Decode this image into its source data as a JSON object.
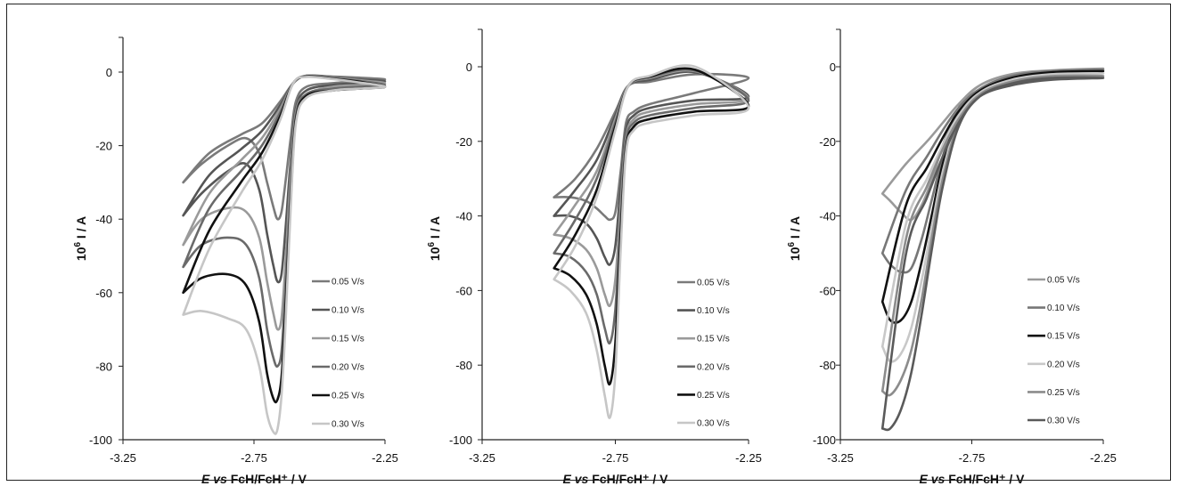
{
  "chart_data": [
    {
      "type": "line",
      "title": "",
      "xlabel": {
        "italic": "E vs",
        "rest": "FcH/FcH⁺ / V"
      },
      "ylabel": {
        "prefix": "10",
        "sup": "6",
        "rest": " I / A"
      },
      "xlim": [
        -3.25,
        -2.25
      ],
      "ylim": [
        -100,
        10
      ],
      "xticks": [
        "-3.25",
        "-2.75",
        "-2.25"
      ],
      "yticks": [
        "0",
        "-20",
        "-40",
        "-60",
        "-80",
        "-100"
      ],
      "grid": false,
      "legend": "bottom-right",
      "series": [
        {
          "name": "0.05 V/s",
          "color": "#7a7a7a",
          "x": [
            -3.02,
            -2.95,
            -2.85,
            -2.78,
            -2.73,
            -2.7,
            -2.675,
            -2.66,
            -2.645,
            -2.63,
            -2.61,
            -2.59,
            -2.55,
            -2.45,
            -2.35,
            -2.25,
            -2.35,
            -2.45,
            -2.55,
            -2.6,
            -2.65,
            -2.72,
            -2.8,
            -2.92,
            -3.02
          ],
          "y": [
            -30,
            -25,
            -20,
            -18,
            -22,
            -30,
            -37,
            -40,
            -38,
            -30,
            -18,
            -8,
            -4,
            -3,
            -2.5,
            -2,
            -1.5,
            -1.2,
            -1,
            -3,
            -8,
            -14,
            -17,
            -22,
            -30
          ]
        },
        {
          "name": "0.10 V/s",
          "color": "#555555",
          "x": [
            -3.02,
            -2.95,
            -2.85,
            -2.78,
            -2.73,
            -2.7,
            -2.675,
            -2.66,
            -2.645,
            -2.63,
            -2.61,
            -2.59,
            -2.55,
            -2.45,
            -2.35,
            -2.25,
            -2.35,
            -2.45,
            -2.55,
            -2.6,
            -2.65,
            -2.72,
            -2.8,
            -2.92,
            -3.02
          ],
          "y": [
            -39,
            -33,
            -27,
            -25,
            -32,
            -44,
            -53,
            -57,
            -55,
            -43,
            -24,
            -10,
            -5,
            -3.5,
            -3,
            -2.5,
            -2,
            -1.5,
            -1,
            -3,
            -9,
            -16,
            -21,
            -28,
            -39
          ]
        },
        {
          "name": "0.15 V/s",
          "color": "#9a9a9a",
          "x": [
            -3.02,
            -2.95,
            -2.85,
            -2.78,
            -2.73,
            -2.7,
            -2.675,
            -2.66,
            -2.645,
            -2.63,
            -2.61,
            -2.59,
            -2.55,
            -2.45,
            -2.35,
            -2.25,
            -2.35,
            -2.45,
            -2.55,
            -2.6,
            -2.65,
            -2.72,
            -2.8,
            -2.92,
            -3.02
          ],
          "y": [
            -47,
            -40,
            -37,
            -38,
            -45,
            -57,
            -66,
            -70,
            -67,
            -52,
            -28,
            -11,
            -6,
            -4,
            -3.5,
            -3,
            -2.2,
            -1.6,
            -1,
            -3,
            -10,
            -18,
            -24,
            -33,
            -47
          ]
        },
        {
          "name": "0.20 V/s",
          "color": "#6a6a6a",
          "x": [
            -3.02,
            -2.95,
            -2.85,
            -2.78,
            -2.73,
            -2.7,
            -2.675,
            -2.66,
            -2.645,
            -2.63,
            -2.61,
            -2.59,
            -2.55,
            -2.45,
            -2.35,
            -2.25,
            -2.35,
            -2.45,
            -2.55,
            -2.6,
            -2.65,
            -2.72,
            -2.8,
            -2.92,
            -3.02
          ],
          "y": [
            -53,
            -47,
            -45,
            -47,
            -56,
            -70,
            -78,
            -80,
            -76,
            -59,
            -32,
            -12,
            -6,
            -4.5,
            -4,
            -3.5,
            -2.4,
            -1.7,
            -1.1,
            -3,
            -11,
            -20,
            -27,
            -37,
            -53
          ]
        },
        {
          "name": "0.25 V/s",
          "color": "#111111",
          "x": [
            -3.02,
            -2.95,
            -2.85,
            -2.78,
            -2.73,
            -2.7,
            -2.675,
            -2.66,
            -2.645,
            -2.63,
            -2.61,
            -2.59,
            -2.55,
            -2.45,
            -2.35,
            -2.25,
            -2.35,
            -2.45,
            -2.55,
            -2.6,
            -2.65,
            -2.72,
            -2.8,
            -2.92,
            -3.02
          ],
          "y": [
            -60,
            -56,
            -55,
            -58,
            -68,
            -82,
            -89,
            -89,
            -83,
            -65,
            -35,
            -13,
            -6.5,
            -5,
            -4.5,
            -4,
            -2.6,
            -1.8,
            -1.2,
            -3,
            -12,
            -22,
            -30,
            -43,
            -60
          ]
        },
        {
          "name": "0.30 V/s",
          "color": "#c6c6c6",
          "x": [
            -3.02,
            -2.95,
            -2.85,
            -2.78,
            -2.73,
            -2.7,
            -2.675,
            -2.66,
            -2.645,
            -2.63,
            -2.61,
            -2.59,
            -2.55,
            -2.45,
            -2.35,
            -2.25,
            -2.35,
            -2.45,
            -2.55,
            -2.6,
            -2.65,
            -2.72,
            -2.8,
            -2.92,
            -3.02
          ],
          "y": [
            -66,
            -65,
            -67,
            -70,
            -80,
            -93,
            -98,
            -97,
            -88,
            -69,
            -37,
            -14,
            -7,
            -5,
            -4.5,
            -4,
            -2.8,
            -1.9,
            -1.3,
            -3,
            -13,
            -24,
            -33,
            -48,
            -66
          ]
        }
      ]
    },
    {
      "type": "line",
      "title": "",
      "xlabel": {
        "italic": "E vs",
        "rest": "FcH/FcH⁺ / V"
      },
      "ylabel": {
        "prefix": "10",
        "sup": "6",
        "rest": " I / A"
      },
      "xlim": [
        -3.25,
        -2.25
      ],
      "ylim": [
        -100,
        10
      ],
      "xticks": [
        "-3.25",
        "-2.75",
        "-2.25"
      ],
      "yticks": [
        "0",
        "-20",
        "-40",
        "-60",
        "-80",
        "-100"
      ],
      "grid": false,
      "legend": "bottom-right",
      "series": [
        {
          "name": "0.05 V/s",
          "color": "#7a7a7a",
          "x": [
            -2.98,
            -2.92,
            -2.86,
            -2.82,
            -2.79,
            -2.77,
            -2.75,
            -2.73,
            -2.71,
            -2.68,
            -2.62,
            -2.45,
            -2.25,
            -2.45,
            -2.62,
            -2.7,
            -2.75,
            -2.82,
            -2.9,
            -2.98
          ],
          "y": [
            -35,
            -35,
            -36,
            -38,
            -40,
            -41,
            -39,
            -28,
            -15,
            -12,
            -10,
            -7,
            -3,
            -2,
            -4,
            -5,
            -12,
            -22,
            -30,
            -35
          ]
        },
        {
          "name": "0.10 V/s",
          "color": "#555555",
          "x": [
            -2.98,
            -2.92,
            -2.86,
            -2.82,
            -2.79,
            -2.77,
            -2.75,
            -2.73,
            -2.71,
            -2.68,
            -2.62,
            -2.45,
            -2.25,
            -2.45,
            -2.62,
            -2.7,
            -2.75,
            -2.82,
            -2.9,
            -2.98
          ],
          "y": [
            -40,
            -40,
            -42,
            -46,
            -51,
            -53,
            -48,
            -32,
            -17,
            -13,
            -11,
            -9,
            -8,
            -1.5,
            -3.5,
            -5,
            -13,
            -25,
            -33,
            -40
          ]
        },
        {
          "name": "0.15 V/s",
          "color": "#9a9a9a",
          "x": [
            -2.98,
            -2.92,
            -2.86,
            -2.82,
            -2.79,
            -2.77,
            -2.75,
            -2.73,
            -2.71,
            -2.68,
            -2.62,
            -2.45,
            -2.25,
            -2.45,
            -2.62,
            -2.7,
            -2.75,
            -2.82,
            -2.9,
            -2.98
          ],
          "y": [
            -45,
            -46,
            -49,
            -54,
            -61,
            -64,
            -57,
            -37,
            -19,
            -14,
            -12,
            -10,
            -8.5,
            -1.2,
            -3,
            -5,
            -14,
            -28,
            -37,
            -45
          ]
        },
        {
          "name": "0.20 V/s",
          "color": "#6a6a6a",
          "x": [
            -2.98,
            -2.92,
            -2.86,
            -2.82,
            -2.79,
            -2.77,
            -2.75,
            -2.73,
            -2.71,
            -2.68,
            -2.62,
            -2.45,
            -2.25,
            -2.45,
            -2.62,
            -2.7,
            -2.75,
            -2.82,
            -2.9,
            -2.98
          ],
          "y": [
            -50,
            -51,
            -55,
            -61,
            -70,
            -74,
            -65,
            -41,
            -20,
            -15,
            -13,
            -11,
            -9,
            -1,
            -2.8,
            -5,
            -15,
            -30,
            -41,
            -50
          ]
        },
        {
          "name": "0.25 V/s",
          "color": "#111111",
          "x": [
            -2.98,
            -2.92,
            -2.86,
            -2.82,
            -2.79,
            -2.77,
            -2.75,
            -2.73,
            -2.71,
            -2.68,
            -2.62,
            -2.45,
            -2.25,
            -2.45,
            -2.62,
            -2.7,
            -2.75,
            -2.82,
            -2.9,
            -2.98
          ],
          "y": [
            -54,
            -56,
            -61,
            -69,
            -80,
            -85,
            -74,
            -45,
            -22,
            -16,
            -14,
            -12,
            -10.5,
            -0.8,
            -2.6,
            -5,
            -16,
            -33,
            -45,
            -54
          ]
        },
        {
          "name": "0.30 V/s",
          "color": "#c6c6c6",
          "x": [
            -2.98,
            -2.92,
            -2.86,
            -2.82,
            -2.79,
            -2.77,
            -2.75,
            -2.73,
            -2.71,
            -2.68,
            -2.62,
            -2.45,
            -2.25,
            -2.45,
            -2.62,
            -2.7,
            -2.75,
            -2.82,
            -2.9,
            -2.98
          ],
          "y": [
            -57,
            -60,
            -66,
            -76,
            -88,
            -94,
            -82,
            -49,
            -23,
            -17,
            -15,
            -13,
            -11,
            0,
            -2.4,
            -5,
            -17,
            -35,
            -48,
            -57
          ]
        }
      ]
    },
    {
      "type": "line",
      "title": "",
      "xlabel": {
        "italic": "E vs",
        "rest": "FcH/FcH⁺ / V"
      },
      "ylabel": {
        "prefix": "10",
        "sup": "6",
        "rest": " I / A"
      },
      "xlim": [
        -3.25,
        -2.25
      ],
      "ylim": [
        -100,
        10
      ],
      "xticks": [
        "-3.25",
        "-2.75",
        "-2.25"
      ],
      "yticks": [
        "0",
        "-20",
        "-40",
        "-60",
        "-80",
        "-100"
      ],
      "grid": false,
      "legend": "bottom-right",
      "series": [
        {
          "name": "0.05 V/s",
          "color": "#9a9a9a",
          "x": [
            -3.09,
            -3.06,
            -3.02,
            -2.98,
            -2.94,
            -2.9,
            -2.86,
            -2.8,
            -2.72,
            -2.6,
            -2.45,
            -2.25,
            -2.45,
            -2.6,
            -2.72,
            -2.8,
            -2.86,
            -2.92,
            -3.0,
            -3.09
          ],
          "y": [
            -34,
            -36,
            -39,
            -41,
            -37,
            -30,
            -21,
            -11,
            -5,
            -2,
            -1,
            -0.5,
            -1,
            -2,
            -5,
            -10,
            -15,
            -20,
            -26,
            -34
          ]
        },
        {
          "name": "0.10 V/s",
          "color": "#777777",
          "x": [
            -3.09,
            -3.06,
            -3.02,
            -2.98,
            -2.94,
            -2.9,
            -2.86,
            -2.8,
            -2.72,
            -2.6,
            -2.45,
            -2.25,
            -2.45,
            -2.6,
            -2.72,
            -2.8,
            -2.86,
            -2.92,
            -3.0,
            -3.09
          ],
          "y": [
            -50,
            -53,
            -55,
            -54,
            -46,
            -35,
            -24,
            -12,
            -6,
            -2.5,
            -1.2,
            -0.8,
            -1.5,
            -3,
            -6,
            -11,
            -17,
            -24,
            -33,
            -50
          ]
        },
        {
          "name": "0.15 V/s",
          "color": "#111111",
          "x": [
            -3.09,
            -3.06,
            -3.02,
            -2.98,
            -2.94,
            -2.9,
            -2.86,
            -2.8,
            -2.72,
            -2.6,
            -2.45,
            -2.25,
            -2.45,
            -2.6,
            -2.72,
            -2.8,
            -2.86,
            -2.92,
            -3.0,
            -3.09
          ],
          "y": [
            -63,
            -68,
            -68,
            -63,
            -52,
            -39,
            -26,
            -13,
            -6.5,
            -3,
            -1.5,
            -1.2,
            -2,
            -3.5,
            -6.5,
            -12,
            -19,
            -27,
            -37,
            -63
          ]
        },
        {
          "name": "0.20 V/s",
          "color": "#c8c8c8",
          "x": [
            -3.09,
            -3.06,
            -3.02,
            -2.98,
            -2.94,
            -2.9,
            -2.86,
            -2.8,
            -2.72,
            -2.6,
            -2.45,
            -2.25,
            -2.45,
            -2.6,
            -2.72,
            -2.8,
            -2.86,
            -2.92,
            -3.0,
            -3.09
          ],
          "y": [
            -75,
            -79,
            -77,
            -70,
            -57,
            -42,
            -28,
            -14,
            -7,
            -3.5,
            -2,
            -1.8,
            -2.5,
            -4,
            -7,
            -13,
            -21,
            -30,
            -42,
            -75
          ]
        },
        {
          "name": "0.25 V/s",
          "color": "#8c8c8c",
          "x": [
            -3.09,
            -3.06,
            -3.02,
            -2.98,
            -2.94,
            -2.9,
            -2.86,
            -2.8,
            -2.72,
            -2.6,
            -2.45,
            -2.25,
            -2.45,
            -2.6,
            -2.72,
            -2.8,
            -2.86,
            -2.92,
            -3.0,
            -3.09
          ],
          "y": [
            -87,
            -88,
            -84,
            -76,
            -62,
            -45,
            -30,
            -15,
            -7.5,
            -4,
            -2.5,
            -2.5,
            -3,
            -4.5,
            -7.5,
            -14,
            -22,
            -32,
            -46,
            -87
          ]
        },
        {
          "name": "0.30 V/s",
          "color": "#5a5a5a",
          "x": [
            -3.09,
            -3.06,
            -3.02,
            -2.98,
            -2.94,
            -2.9,
            -2.86,
            -2.8,
            -2.72,
            -2.6,
            -2.45,
            -2.25,
            -2.45,
            -2.6,
            -2.72,
            -2.8,
            -2.86,
            -2.92,
            -3.0,
            -3.09
          ],
          "y": [
            -97,
            -97,
            -92,
            -82,
            -66,
            -48,
            -32,
            -16,
            -8,
            -4.5,
            -3,
            -3,
            -3.5,
            -5,
            -8,
            -15,
            -24,
            -35,
            -50,
            -97
          ]
        }
      ]
    }
  ]
}
